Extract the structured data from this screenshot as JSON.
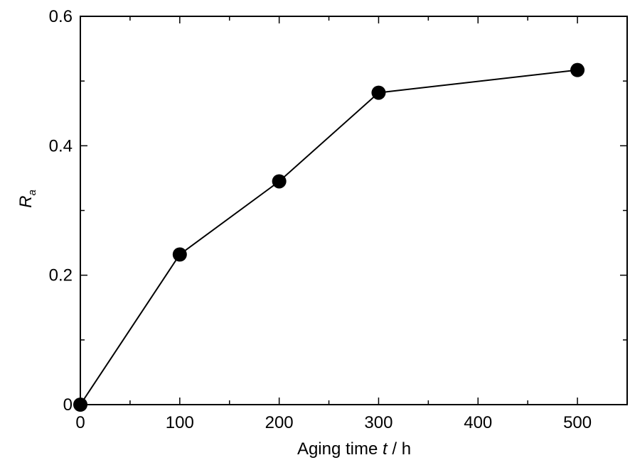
{
  "chart_data": {
    "type": "line",
    "title": "",
    "xlabel": {
      "prefix": "Aging time ",
      "variable": "t",
      "suffix": " / h"
    },
    "ylabel": {
      "main": "R",
      "sub": "a"
    },
    "xlim": [
      0,
      550
    ],
    "ylim": [
      0,
      0.6
    ],
    "x_ticks": [
      {
        "value": 0,
        "label": "0"
      },
      {
        "value": 100,
        "label": "100"
      },
      {
        "value": 200,
        "label": "200"
      },
      {
        "value": 300,
        "label": "300"
      },
      {
        "value": 400,
        "label": "400"
      },
      {
        "value": 500,
        "label": "500"
      }
    ],
    "x_minor_ticks": [
      50,
      150,
      250,
      350,
      450,
      550
    ],
    "y_ticks": [
      {
        "value": 0,
        "label": "0"
      },
      {
        "value": 0.2,
        "label": "0.2"
      },
      {
        "value": 0.4,
        "label": "0.4"
      },
      {
        "value": 0.6,
        "label": "0.6"
      }
    ],
    "y_minor_ticks": [
      0.1,
      0.3,
      0.5
    ],
    "grid": false,
    "series": [
      {
        "marker": "filled-circle",
        "color": "#000000",
        "x": [
          0,
          100,
          200,
          300,
          500
        ],
        "y": [
          0,
          0.232,
          0.345,
          0.482,
          0.517
        ]
      }
    ]
  }
}
